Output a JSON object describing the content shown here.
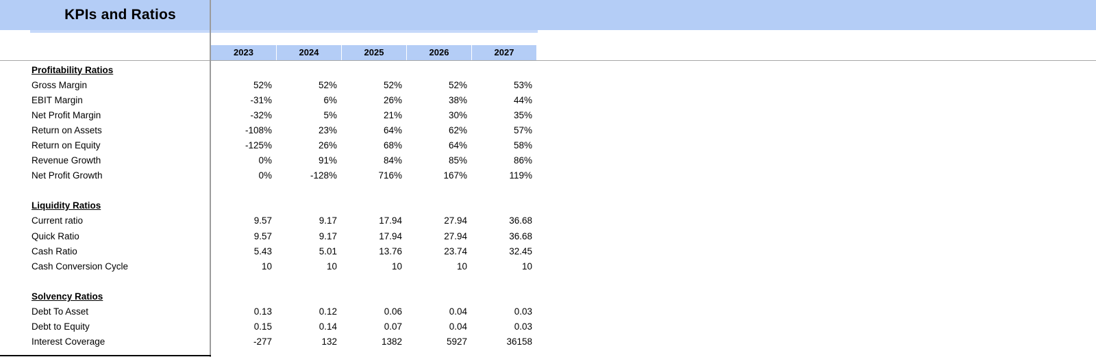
{
  "title": "KPIs and Ratios",
  "columns": [
    "2023",
    "2024",
    "2025",
    "2026",
    "2027"
  ],
  "sections": [
    {
      "header": "Profitability Ratios",
      "rows": [
        {
          "label": "Gross Margin",
          "values": [
            "52%",
            "52%",
            "52%",
            "52%",
            "53%"
          ]
        },
        {
          "label": "EBIT Margin",
          "values": [
            "-31%",
            "6%",
            "26%",
            "38%",
            "44%"
          ]
        },
        {
          "label": "Net Profit Margin",
          "values": [
            "-32%",
            "5%",
            "21%",
            "30%",
            "35%"
          ]
        },
        {
          "label": "Return on Assets",
          "values": [
            "-108%",
            "23%",
            "64%",
            "62%",
            "57%"
          ]
        },
        {
          "label": "Return on Equity",
          "values": [
            "-125%",
            "26%",
            "68%",
            "64%",
            "58%"
          ]
        },
        {
          "label": "Revenue Growth",
          "values": [
            "0%",
            "91%",
            "84%",
            "85%",
            "86%"
          ]
        },
        {
          "label": "Net Profit Growth",
          "values": [
            "0%",
            "-128%",
            "716%",
            "167%",
            "119%"
          ]
        }
      ]
    },
    {
      "header": "Liquidity Ratios",
      "rows": [
        {
          "label": "Current ratio",
          "values": [
            "9.57",
            "9.17",
            "17.94",
            "27.94",
            "36.68"
          ]
        },
        {
          "label": "Quick Ratio",
          "values": [
            "9.57",
            "9.17",
            "17.94",
            "27.94",
            "36.68"
          ]
        },
        {
          "label": "Cash Ratio",
          "values": [
            "5.43",
            "5.01",
            "13.76",
            "23.74",
            "32.45"
          ]
        },
        {
          "label": "Cash Conversion Cycle",
          "values": [
            "10",
            "10",
            "10",
            "10",
            "10"
          ]
        }
      ]
    },
    {
      "header": "Solvency Ratios",
      "rows": [
        {
          "label": "Debt To Asset",
          "values": [
            "0.13",
            "0.12",
            "0.06",
            "0.04",
            "0.03"
          ]
        },
        {
          "label": "Debt to Equity",
          "values": [
            "0.15",
            "0.14",
            "0.07",
            "0.04",
            "0.03"
          ]
        },
        {
          "label": "Interest Coverage",
          "values": [
            "-277",
            "132",
            "1382",
            "5927",
            "36158"
          ]
        }
      ]
    }
  ],
  "colors": {
    "title_band": "#b4cdf6",
    "sub_band": "#c6d9fa",
    "year_cell": "#b4cdf6",
    "gridline": "#a6a6a6",
    "pane_divider": "#9b9b9b",
    "bottom_border": "#000000",
    "text": "#000000"
  }
}
